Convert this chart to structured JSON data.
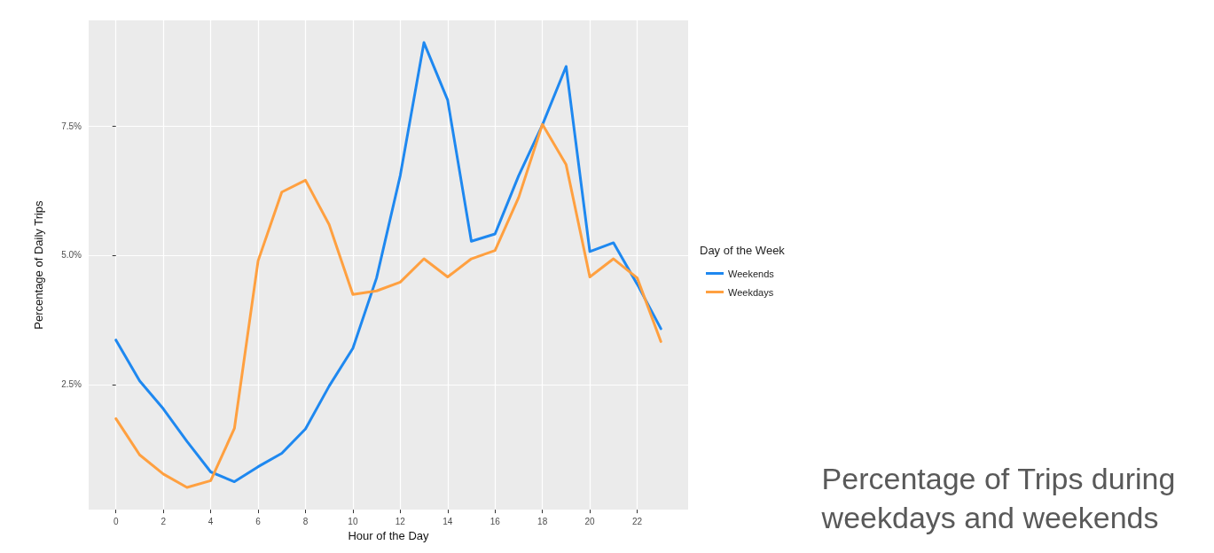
{
  "chart_data": {
    "type": "line",
    "title": "Percentage of Trips during\nweekdays and weekends",
    "xlabel": "Hour of the Day",
    "ylabel": "Percentage of Daily Trips",
    "legend_title": "Day of the Week",
    "legend": "right",
    "grid": true,
    "marker": "none",
    "line_style": "solid",
    "x": [
      0,
      1,
      2,
      3,
      4,
      5,
      6,
      7,
      8,
      9,
      10,
      11,
      12,
      13,
      14,
      15,
      16,
      17,
      18,
      19,
      20,
      21,
      22,
      23
    ],
    "xlim": [
      -1.15,
      24.15
    ],
    "xticks": [
      0,
      2,
      4,
      6,
      8,
      10,
      12,
      14,
      16,
      18,
      20,
      22
    ],
    "ylim": [
      0.08,
      9.54
    ],
    "yticks": [
      {
        "value": 2.5,
        "label": "2.5%"
      },
      {
        "value": 5,
        "label": "5.0%"
      },
      {
        "value": 7.5,
        "label": "7.5%"
      }
    ],
    "series": [
      {
        "name": "Weekends",
        "color": "#1e88f0",
        "values": [
          3.36,
          2.57,
          2.03,
          1.4,
          0.81,
          0.62,
          0.91,
          1.17,
          1.64,
          2.47,
          3.2,
          4.56,
          6.54,
          9.11,
          8.0,
          5.27,
          5.41,
          6.54,
          7.52,
          8.65,
          5.07,
          5.24,
          4.44,
          3.58
        ]
      },
      {
        "name": "Weekdays",
        "color": "#ffa040",
        "values": [
          1.84,
          1.14,
          0.77,
          0.51,
          0.64,
          1.65,
          4.89,
          6.22,
          6.45,
          5.59,
          4.24,
          4.31,
          4.48,
          4.93,
          4.58,
          4.93,
          5.09,
          6.12,
          7.53,
          6.75,
          4.58,
          4.93,
          4.56,
          3.33
        ]
      }
    ]
  }
}
